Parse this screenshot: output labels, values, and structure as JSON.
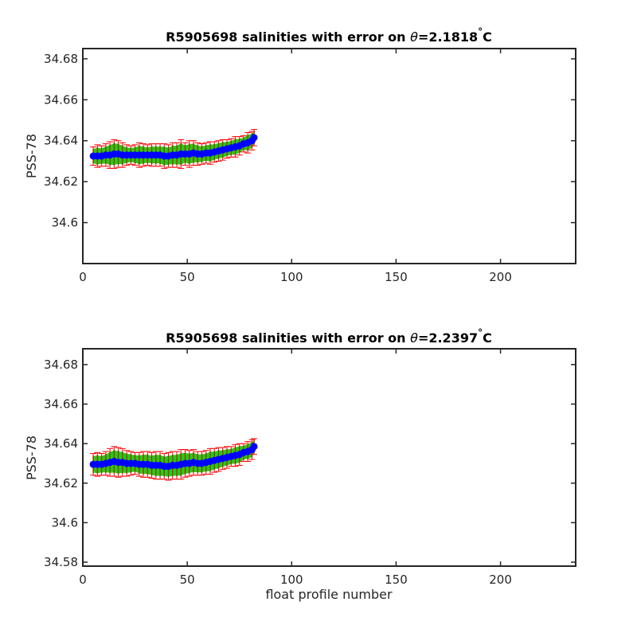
{
  "chart_data": [
    {
      "type": "scatter",
      "title_prefix": "R5905698 salinities with error on ",
      "title_symbol": "θ",
      "title_value": "=2.1818",
      "title_degree": "°",
      "title_unit": "C",
      "xlabel": "",
      "ylabel": "PSS-78",
      "xlim": [
        0,
        236
      ],
      "ylim": [
        34.58,
        34.685
      ],
      "xticks": [
        0,
        50,
        100,
        150,
        200
      ],
      "yticks": [
        34.6,
        34.62,
        34.64,
        34.66,
        34.68
      ],
      "xtick_labels": [
        "0",
        "50",
        "100",
        "150",
        "200"
      ],
      "ytick_labels": [
        "34.6",
        "34.62",
        "34.64",
        "34.66",
        "34.68"
      ],
      "series": [
        {
          "marker": "circle",
          "color": "#0000ff",
          "err_color": "#ff0000",
          "data_color": "#00cc00",
          "x": [
            5,
            7,
            9,
            11,
            13,
            15,
            17,
            19,
            21,
            23,
            25,
            27,
            29,
            31,
            33,
            35,
            37,
            39,
            41,
            43,
            45,
            47,
            49,
            51,
            53,
            55,
            57,
            59,
            61,
            63,
            65,
            67,
            69,
            71,
            73,
            75,
            77,
            79,
            81,
            82
          ],
          "y": [
            34.6325,
            34.6325,
            34.6325,
            34.633,
            34.633,
            34.6335,
            34.6335,
            34.633,
            34.633,
            34.633,
            34.633,
            34.633,
            34.633,
            34.633,
            34.633,
            34.633,
            34.633,
            34.6325,
            34.6325,
            34.633,
            34.633,
            34.6335,
            34.6335,
            34.6335,
            34.634,
            34.6335,
            34.6335,
            34.634,
            34.634,
            34.6345,
            34.635,
            34.6355,
            34.636,
            34.6365,
            34.637,
            34.6375,
            34.6385,
            34.639,
            34.64,
            34.6415
          ],
          "err": [
            0.0045,
            0.0055,
            0.005,
            0.0055,
            0.0065,
            0.007,
            0.0065,
            0.006,
            0.005,
            0.0045,
            0.005,
            0.006,
            0.0055,
            0.005,
            0.0055,
            0.0055,
            0.0055,
            0.006,
            0.0055,
            0.006,
            0.006,
            0.007,
            0.0055,
            0.0065,
            0.006,
            0.0055,
            0.005,
            0.005,
            0.0055,
            0.005,
            0.005,
            0.005,
            0.0045,
            0.0045,
            0.005,
            0.0045,
            0.004,
            0.005,
            0.0045,
            0.004
          ]
        }
      ]
    },
    {
      "type": "scatter",
      "title_prefix": "R5905698 salinities with error on ",
      "title_symbol": "θ",
      "title_value": "=2.2397",
      "title_degree": "°",
      "title_unit": "C",
      "xlabel": "float profile number",
      "ylabel": "PSS-78",
      "xlim": [
        0,
        236
      ],
      "ylim": [
        34.578,
        34.688
      ],
      "xticks": [
        0,
        50,
        100,
        150,
        200
      ],
      "yticks": [
        34.58,
        34.6,
        34.62,
        34.64,
        34.66,
        34.68
      ],
      "xtick_labels": [
        "0",
        "50",
        "100",
        "150",
        "200"
      ],
      "ytick_labels": [
        "34.58",
        "34.6",
        "34.62",
        "34.64",
        "34.66",
        "34.68"
      ],
      "series": [
        {
          "marker": "circle",
          "color": "#0000ff",
          "err_color": "#ff0000",
          "data_color": "#00cc00",
          "x": [
            5,
            7,
            9,
            11,
            13,
            15,
            17,
            19,
            21,
            23,
            25,
            27,
            29,
            31,
            33,
            35,
            37,
            39,
            41,
            43,
            45,
            47,
            49,
            51,
            53,
            55,
            57,
            59,
            61,
            63,
            65,
            67,
            69,
            71,
            73,
            75,
            77,
            79,
            81,
            82
          ],
          "y": [
            34.6295,
            34.6295,
            34.6295,
            34.63,
            34.6305,
            34.631,
            34.6305,
            34.6305,
            34.63,
            34.63,
            34.63,
            34.6295,
            34.6295,
            34.6295,
            34.629,
            34.629,
            34.629,
            34.6285,
            34.6285,
            34.629,
            34.629,
            34.6295,
            34.63,
            34.63,
            34.6305,
            34.63,
            34.63,
            34.6305,
            34.631,
            34.6315,
            34.632,
            34.6325,
            34.633,
            34.6335,
            34.634,
            34.6345,
            34.6355,
            34.636,
            34.637,
            34.6385
          ],
          "err": [
            0.0055,
            0.006,
            0.0055,
            0.006,
            0.007,
            0.0075,
            0.0075,
            0.007,
            0.0065,
            0.006,
            0.0055,
            0.006,
            0.0065,
            0.0065,
            0.0065,
            0.007,
            0.007,
            0.0065,
            0.007,
            0.007,
            0.007,
            0.0075,
            0.007,
            0.0065,
            0.0065,
            0.006,
            0.006,
            0.006,
            0.0065,
            0.006,
            0.006,
            0.0055,
            0.0055,
            0.005,
            0.0055,
            0.0055,
            0.0045,
            0.005,
            0.005,
            0.004
          ]
        }
      ]
    }
  ]
}
